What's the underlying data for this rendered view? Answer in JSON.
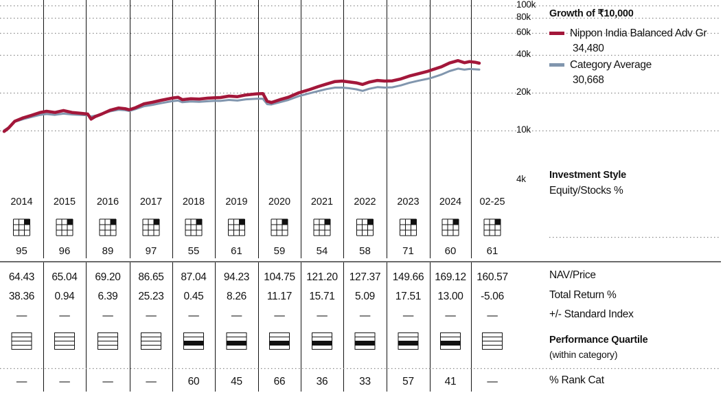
{
  "panel": {
    "growth_title": "Growth of ₹10,000",
    "style_title": "Investment Style",
    "style_sub": "Equity/Stocks %",
    "row_labels": {
      "nav": "NAV/Price",
      "total_return": "Total Return %",
      "vs_index": "+/- Standard Index",
      "quartile_title": "Performance Quartile",
      "quartile_sub": "(within category)",
      "rank": "% Rank Cat"
    }
  },
  "colors": {
    "fund": "#A3173A",
    "category": "#8196AE",
    "grid": "#7a7a7a"
  },
  "chart_data": {
    "type": "line",
    "title": "Growth of ₹10,000",
    "y_scale": "log",
    "ylim": [
      4000,
      100000
    ],
    "y_ticks": [
      "100k",
      "80k",
      "60k",
      "40k",
      "20k",
      "10k",
      "4k"
    ],
    "y_tick_values": [
      100000,
      80000,
      60000,
      40000,
      20000,
      10000,
      4000
    ],
    "x": [
      "2014",
      "2015",
      "2016",
      "2017",
      "2018",
      "2019",
      "2020",
      "2021",
      "2022",
      "2023",
      "2024",
      "02-25"
    ],
    "series": [
      {
        "name": "Nippon India Balanced Adv Gr",
        "end_value_label": "34,480",
        "points": [
          [
            2014.0,
            9800
          ],
          [
            2014.1,
            10400
          ],
          [
            2014.25,
            11800
          ],
          [
            2014.45,
            12600
          ],
          [
            2014.65,
            13200
          ],
          [
            2014.85,
            13900
          ],
          [
            2015.0,
            14200
          ],
          [
            2015.2,
            13900
          ],
          [
            2015.4,
            14400
          ],
          [
            2015.6,
            13900
          ],
          [
            2015.8,
            13700
          ],
          [
            2015.97,
            13500
          ],
          [
            2016.05,
            12300
          ],
          [
            2016.15,
            12900
          ],
          [
            2016.3,
            13500
          ],
          [
            2016.5,
            14500
          ],
          [
            2016.7,
            15100
          ],
          [
            2016.85,
            14900
          ],
          [
            2016.95,
            14600
          ],
          [
            2017.1,
            15200
          ],
          [
            2017.3,
            16300
          ],
          [
            2017.5,
            16800
          ],
          [
            2017.7,
            17400
          ],
          [
            2017.95,
            18100
          ],
          [
            2018.1,
            18400
          ],
          [
            2018.2,
            17600
          ],
          [
            2018.4,
            17900
          ],
          [
            2018.6,
            17800
          ],
          [
            2018.8,
            18100
          ],
          [
            2018.95,
            18200
          ],
          [
            2019.1,
            18300
          ],
          [
            2019.3,
            18800
          ],
          [
            2019.5,
            18600
          ],
          [
            2019.7,
            19200
          ],
          [
            2019.95,
            19600
          ],
          [
            2020.1,
            19700
          ],
          [
            2020.2,
            17100
          ],
          [
            2020.3,
            16700
          ],
          [
            2020.5,
            17600
          ],
          [
            2020.7,
            18400
          ],
          [
            2020.95,
            20000
          ],
          [
            2021.2,
            21200
          ],
          [
            2021.4,
            22400
          ],
          [
            2021.6,
            23500
          ],
          [
            2021.8,
            24600
          ],
          [
            2021.97,
            24800
          ],
          [
            2022.1,
            24500
          ],
          [
            2022.3,
            24000
          ],
          [
            2022.45,
            23300
          ],
          [
            2022.6,
            24300
          ],
          [
            2022.8,
            25100
          ],
          [
            2022.97,
            24800
          ],
          [
            2023.15,
            24900
          ],
          [
            2023.35,
            25800
          ],
          [
            2023.55,
            27200
          ],
          [
            2023.75,
            28300
          ],
          [
            2023.97,
            29600
          ],
          [
            2024.1,
            30600
          ],
          [
            2024.3,
            32200
          ],
          [
            2024.5,
            34600
          ],
          [
            2024.7,
            36200
          ],
          [
            2024.85,
            34800
          ],
          [
            2024.97,
            35500
          ],
          [
            2025.1,
            35100
          ],
          [
            2025.2,
            34480
          ]
        ]
      },
      {
        "name": "Category Average",
        "end_value_label": "30,668",
        "points": [
          [
            2014.0,
            10000
          ],
          [
            2014.1,
            10500
          ],
          [
            2014.25,
            11700
          ],
          [
            2014.45,
            12300
          ],
          [
            2014.65,
            12800
          ],
          [
            2014.85,
            13300
          ],
          [
            2015.0,
            13500
          ],
          [
            2015.2,
            13300
          ],
          [
            2015.4,
            13600
          ],
          [
            2015.6,
            13400
          ],
          [
            2015.8,
            13300
          ],
          [
            2015.97,
            13200
          ],
          [
            2016.05,
            12900
          ],
          [
            2016.15,
            13100
          ],
          [
            2016.3,
            13500
          ],
          [
            2016.5,
            14200
          ],
          [
            2016.7,
            14600
          ],
          [
            2016.85,
            14500
          ],
          [
            2016.95,
            14300
          ],
          [
            2017.1,
            14800
          ],
          [
            2017.3,
            15600
          ],
          [
            2017.5,
            16000
          ],
          [
            2017.7,
            16500
          ],
          [
            2017.95,
            17100
          ],
          [
            2018.1,
            17300
          ],
          [
            2018.2,
            16800
          ],
          [
            2018.4,
            17000
          ],
          [
            2018.6,
            16900
          ],
          [
            2018.8,
            17100
          ],
          [
            2018.95,
            17200
          ],
          [
            2019.1,
            17200
          ],
          [
            2019.3,
            17500
          ],
          [
            2019.5,
            17300
          ],
          [
            2019.7,
            17700
          ],
          [
            2019.95,
            17900
          ],
          [
            2020.1,
            17900
          ],
          [
            2020.2,
            16200
          ],
          [
            2020.3,
            16100
          ],
          [
            2020.5,
            16800
          ],
          [
            2020.7,
            17500
          ],
          [
            2020.95,
            18800
          ],
          [
            2021.2,
            19800
          ],
          [
            2021.4,
            20600
          ],
          [
            2021.6,
            21400
          ],
          [
            2021.8,
            22000
          ],
          [
            2021.97,
            22000
          ],
          [
            2022.1,
            21800
          ],
          [
            2022.3,
            21300
          ],
          [
            2022.45,
            20700
          ],
          [
            2022.6,
            21500
          ],
          [
            2022.8,
            22200
          ],
          [
            2022.97,
            22000
          ],
          [
            2023.15,
            22100
          ],
          [
            2023.35,
            22900
          ],
          [
            2023.55,
            24000
          ],
          [
            2023.75,
            24900
          ],
          [
            2023.97,
            25800
          ],
          [
            2024.1,
            26500
          ],
          [
            2024.3,
            27900
          ],
          [
            2024.5,
            29800
          ],
          [
            2024.7,
            31200
          ],
          [
            2024.85,
            30600
          ],
          [
            2024.97,
            31000
          ],
          [
            2025.1,
            30800
          ],
          [
            2025.2,
            30668
          ]
        ]
      }
    ],
    "investment_style": {
      "years": [
        "2014",
        "2015",
        "2016",
        "2017",
        "2018",
        "2019",
        "2020",
        "2021",
        "2022",
        "2023",
        "2024",
        "02-25"
      ],
      "equity_pct": [
        "95",
        "96",
        "89",
        "97",
        "55",
        "61",
        "59",
        "54",
        "58",
        "71",
        "60",
        "61"
      ],
      "style_box_filled": "top-right"
    },
    "table": {
      "nav": [
        "64.43",
        "65.04",
        "69.20",
        "86.65",
        "87.04",
        "94.23",
        "104.75",
        "121.20",
        "127.37",
        "149.66",
        "169.12",
        "160.57"
      ],
      "total_return": [
        "38.36",
        "0.94",
        "6.39",
        "25.23",
        "0.45",
        "8.26",
        "11.17",
        "15.71",
        "5.09",
        "17.51",
        "13.00",
        "-5.06"
      ],
      "vs_index": [
        "—",
        "—",
        "—",
        "—",
        "—",
        "—",
        "—",
        "—",
        "—",
        "—",
        "—",
        "—"
      ],
      "quartile": [
        null,
        null,
        null,
        null,
        3,
        3,
        3,
        3,
        3,
        3,
        3,
        null
      ],
      "rank": [
        "—",
        "—",
        "—",
        "—",
        "60",
        "45",
        "66",
        "36",
        "33",
        "57",
        "41",
        "—"
      ]
    }
  }
}
